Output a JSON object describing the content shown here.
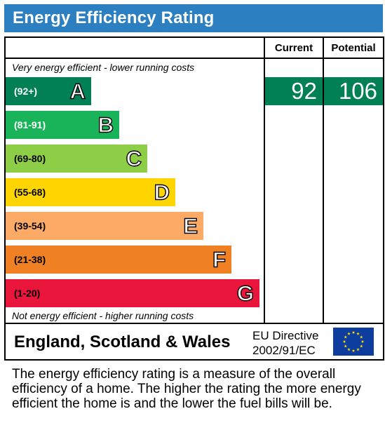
{
  "title": "Energy Efficiency Rating",
  "chart_data": {
    "type": "bar",
    "title": "Energy Efficiency Rating",
    "columns": [
      "Current",
      "Potential"
    ],
    "top_caption": "Very energy efficient - lower running costs",
    "bottom_caption": "Not energy efficient - higher running costs",
    "bands": [
      {
        "range": "(92+)",
        "letter": "A",
        "color": "#008054",
        "text_color": "light",
        "min": 92,
        "max": 100
      },
      {
        "range": "(81-91)",
        "letter": "B",
        "color": "#19b459",
        "text_color": "light",
        "min": 81,
        "max": 91
      },
      {
        "range": "(69-80)",
        "letter": "C",
        "color": "#8dce46",
        "text_color": "dark",
        "min": 69,
        "max": 80
      },
      {
        "range": "(55-68)",
        "letter": "D",
        "color": "#ffd500",
        "text_color": "dark",
        "min": 55,
        "max": 68
      },
      {
        "range": "(39-54)",
        "letter": "E",
        "color": "#fcaa65",
        "text_color": "dark",
        "min": 39,
        "max": 54
      },
      {
        "range": "(21-38)",
        "letter": "F",
        "color": "#ef8023",
        "text_color": "dark",
        "min": 21,
        "max": 38
      },
      {
        "range": "(1-20)",
        "letter": "G",
        "color": "#e9153b",
        "text_color": "dark",
        "min": 1,
        "max": 20
      }
    ],
    "current": {
      "value": 92,
      "band": "A"
    },
    "potential": {
      "value": 106,
      "band": "A"
    }
  },
  "footer": {
    "country": "England, Scotland & Wales",
    "directive_line1": "EU Directive",
    "directive_line2": "2002/91/EC"
  },
  "note": "The energy efficiency rating is a measure of the overall efficiency of a home. The higher the rating the more energy efficient the home is and the lower the fuel bills will be."
}
